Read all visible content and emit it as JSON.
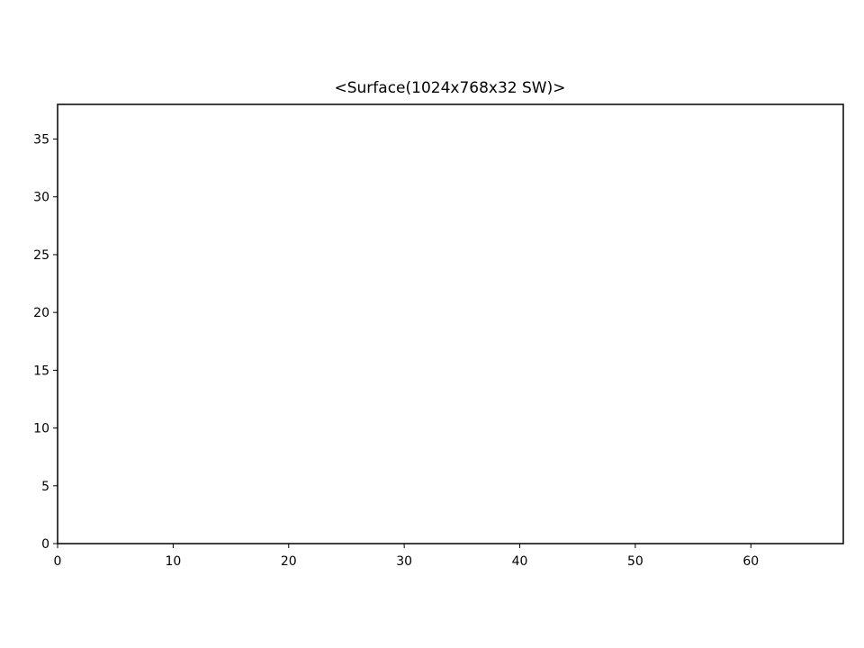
{
  "chart_data": {
    "type": "line",
    "title": "<Surface(1024x768x32 SW)>",
    "xlabel": "",
    "ylabel": "",
    "xlim": [
      0,
      68
    ],
    "ylim": [
      0,
      38
    ],
    "x_ticks": [
      0,
      10,
      20,
      30,
      40,
      50,
      60
    ],
    "y_ticks": [
      0,
      5,
      10,
      15,
      20,
      25,
      30,
      35
    ],
    "grid": false,
    "series": []
  }
}
